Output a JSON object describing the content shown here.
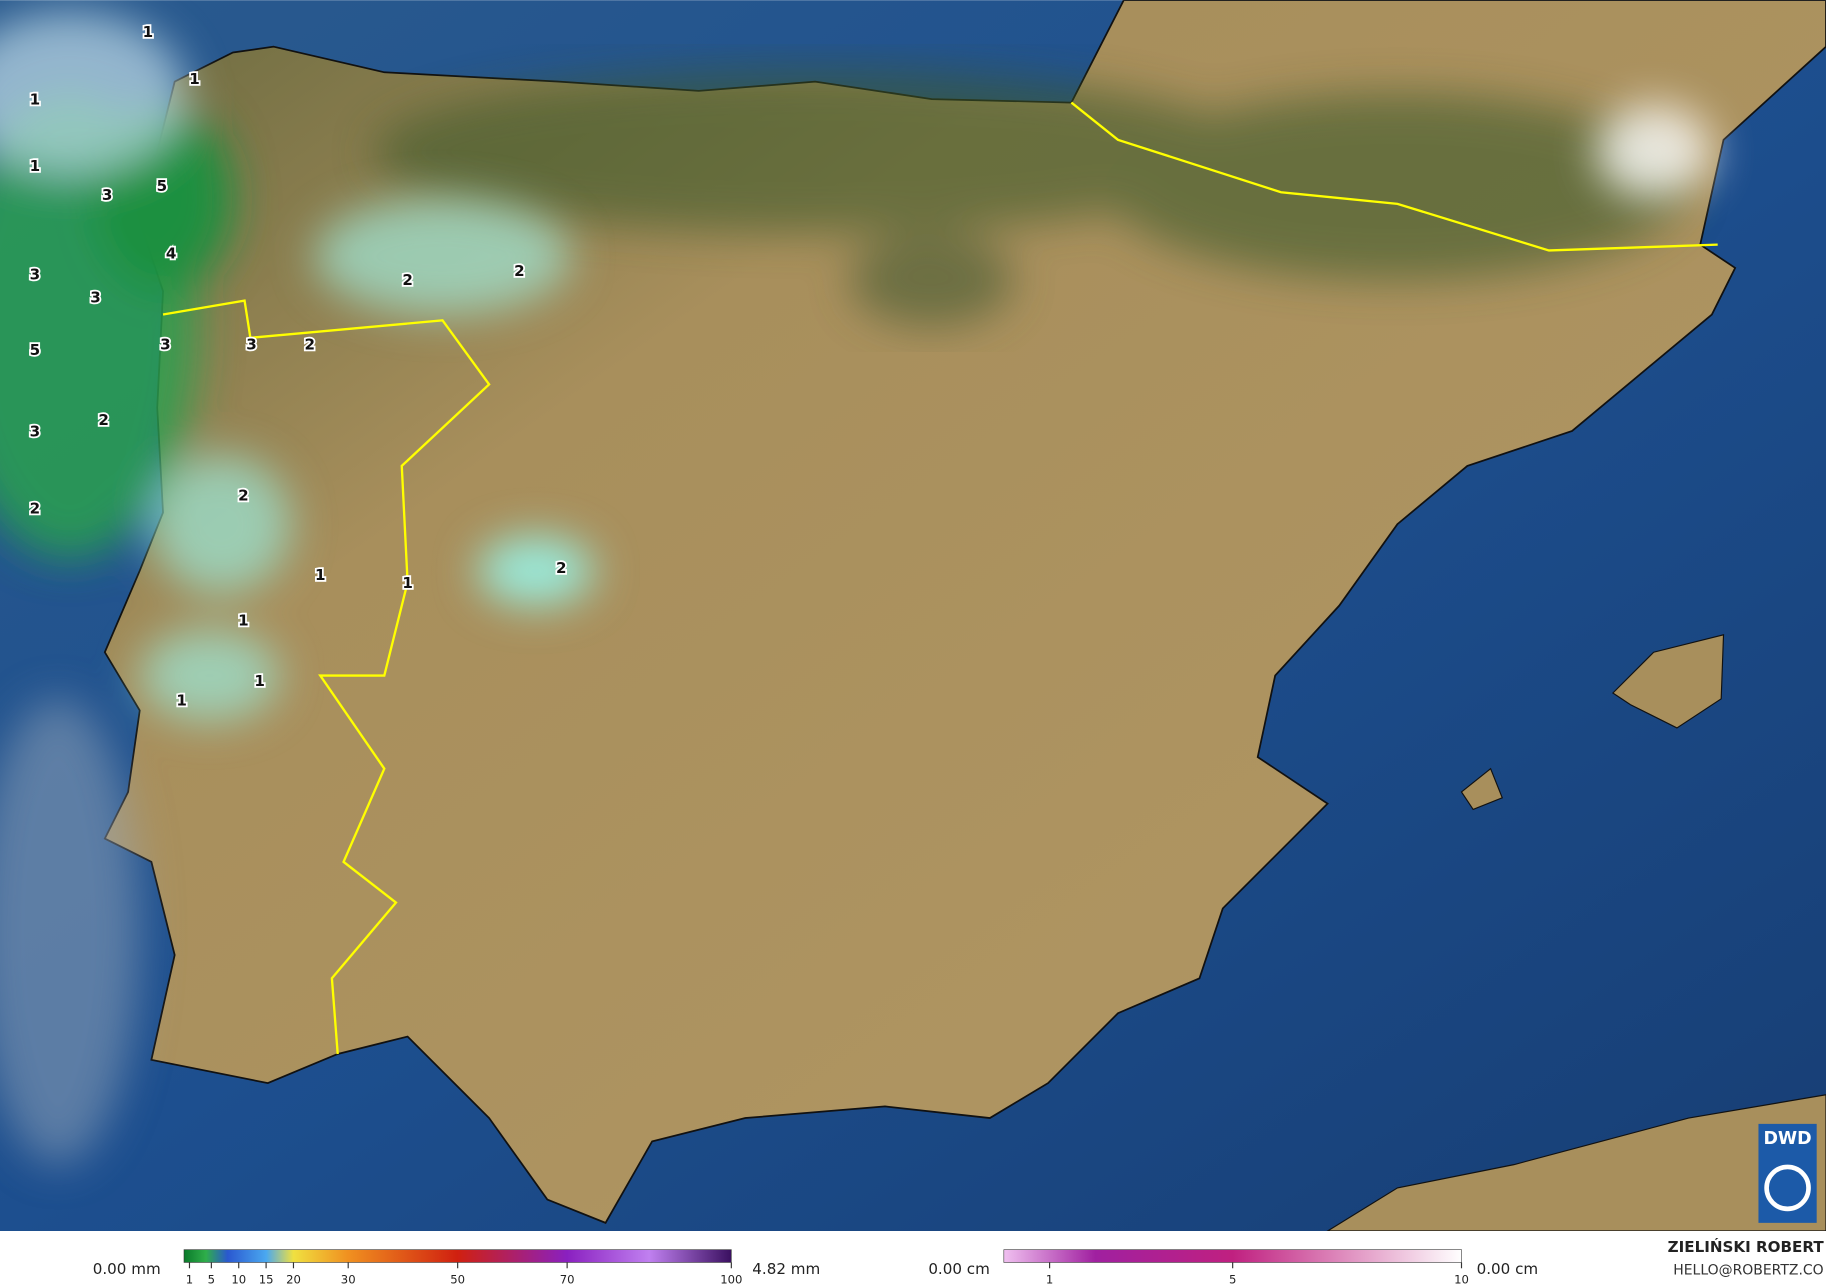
{
  "map": {
    "precipitation_labels": [
      1,
      1,
      1,
      1,
      5,
      3,
      4,
      3,
      3,
      2,
      2,
      3,
      3,
      2,
      5,
      2,
      3,
      2,
      2,
      2,
      1,
      1,
      1,
      1,
      1
    ]
  },
  "legend": {
    "rain": {
      "min_label": "0.00 mm",
      "max_label": "4.82 mm",
      "range": [
        0,
        100
      ],
      "ticks": [
        1,
        5,
        10,
        15,
        20,
        30,
        50,
        70,
        100
      ]
    },
    "snow": {
      "min_label": "0.00 cm",
      "max_label": "0.00 cm",
      "range": [
        0,
        10
      ],
      "ticks": [
        1,
        5,
        10
      ]
    }
  },
  "credit": {
    "name": "ZIELIŃSKI ROBERT",
    "email": "HELLO@ROBERTZ.CO"
  },
  "logo": "DWD"
}
